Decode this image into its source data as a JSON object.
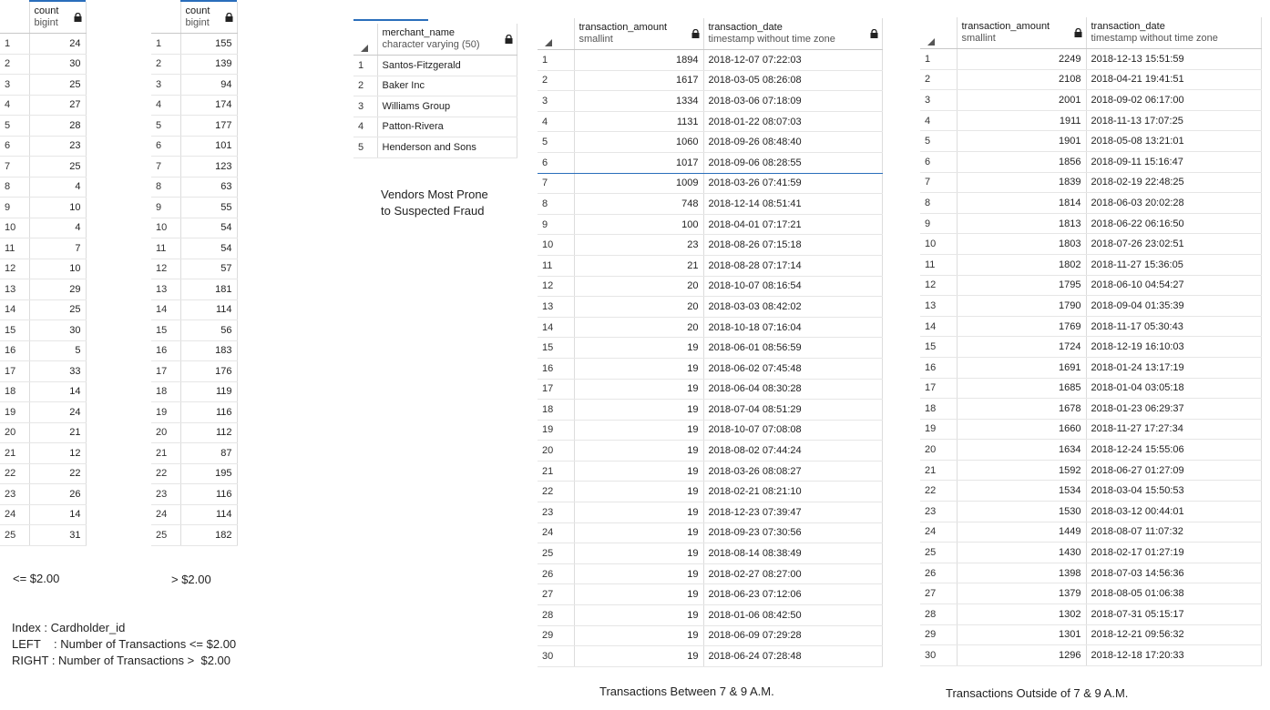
{
  "grid1": {
    "column": {
      "name": "count",
      "type": "bigint"
    },
    "rows": [
      [
        "1",
        "24"
      ],
      [
        "2",
        "30"
      ],
      [
        "3",
        "25"
      ],
      [
        "4",
        "27"
      ],
      [
        "5",
        "28"
      ],
      [
        "6",
        "23"
      ],
      [
        "7",
        "25"
      ],
      [
        "8",
        "4"
      ],
      [
        "9",
        "10"
      ],
      [
        "10",
        "4"
      ],
      [
        "11",
        "7"
      ],
      [
        "12",
        "10"
      ],
      [
        "13",
        "29"
      ],
      [
        "14",
        "25"
      ],
      [
        "15",
        "30"
      ],
      [
        "16",
        "5"
      ],
      [
        "17",
        "33"
      ],
      [
        "18",
        "14"
      ],
      [
        "19",
        "24"
      ],
      [
        "20",
        "21"
      ],
      [
        "21",
        "12"
      ],
      [
        "22",
        "22"
      ],
      [
        "23",
        "26"
      ],
      [
        "24",
        "14"
      ],
      [
        "25",
        "31"
      ]
    ]
  },
  "grid2": {
    "column": {
      "name": "count",
      "type": "bigint"
    },
    "rows": [
      [
        "1",
        "155"
      ],
      [
        "2",
        "139"
      ],
      [
        "3",
        "94"
      ],
      [
        "4",
        "174"
      ],
      [
        "5",
        "177"
      ],
      [
        "6",
        "101"
      ],
      [
        "7",
        "123"
      ],
      [
        "8",
        "63"
      ],
      [
        "9",
        "55"
      ],
      [
        "10",
        "54"
      ],
      [
        "11",
        "54"
      ],
      [
        "12",
        "57"
      ],
      [
        "13",
        "181"
      ],
      [
        "14",
        "114"
      ],
      [
        "15",
        "56"
      ],
      [
        "16",
        "183"
      ],
      [
        "17",
        "176"
      ],
      [
        "18",
        "119"
      ],
      [
        "19",
        "116"
      ],
      [
        "20",
        "112"
      ],
      [
        "21",
        "87"
      ],
      [
        "22",
        "195"
      ],
      [
        "23",
        "116"
      ],
      [
        "24",
        "114"
      ],
      [
        "25",
        "182"
      ]
    ]
  },
  "grid3": {
    "column": {
      "name": "merchant_name",
      "type": "character varying (50)"
    },
    "rows": [
      [
        "1",
        "Santos-Fitzgerald"
      ],
      [
        "2",
        "Baker Inc"
      ],
      [
        "3",
        "Williams Group"
      ],
      [
        "4",
        "Patton-Rivera"
      ],
      [
        "5",
        "Henderson and Sons"
      ]
    ]
  },
  "grid4": {
    "columns": [
      {
        "name": "transaction_amount",
        "type": "smallint"
      },
      {
        "name": "transaction_date",
        "type": "timestamp without time zone"
      }
    ],
    "rows": [
      [
        "1",
        "1894",
        "2018-12-07 07:22:03"
      ],
      [
        "2",
        "1617",
        "2018-03-05 08:26:08"
      ],
      [
        "3",
        "1334",
        "2018-03-06 07:18:09"
      ],
      [
        "4",
        "1131",
        "2018-01-22 08:07:03"
      ],
      [
        "5",
        "1060",
        "2018-09-26 08:48:40"
      ],
      [
        "6",
        "1017",
        "2018-09-06 08:28:55"
      ],
      [
        "7",
        "1009",
        "2018-03-26 07:41:59"
      ],
      [
        "8",
        "748",
        "2018-12-14 08:51:41"
      ],
      [
        "9",
        "100",
        "2018-04-01 07:17:21"
      ],
      [
        "10",
        "23",
        "2018-08-26 07:15:18"
      ],
      [
        "11",
        "21",
        "2018-08-28 07:17:14"
      ],
      [
        "12",
        "20",
        "2018-10-07 08:16:54"
      ],
      [
        "13",
        "20",
        "2018-03-03 08:42:02"
      ],
      [
        "14",
        "20",
        "2018-10-18 07:16:04"
      ],
      [
        "15",
        "19",
        "2018-06-01 08:56:59"
      ],
      [
        "16",
        "19",
        "2018-06-02 07:45:48"
      ],
      [
        "17",
        "19",
        "2018-06-04 08:30:28"
      ],
      [
        "18",
        "19",
        "2018-07-04 08:51:29"
      ],
      [
        "19",
        "19",
        "2018-10-07 07:08:08"
      ],
      [
        "20",
        "19",
        "2018-08-02 07:44:24"
      ],
      [
        "21",
        "19",
        "2018-03-26 08:08:27"
      ],
      [
        "22",
        "19",
        "2018-02-21 08:21:10"
      ],
      [
        "23",
        "19",
        "2018-12-23 07:39:47"
      ],
      [
        "24",
        "19",
        "2018-09-23 07:30:56"
      ],
      [
        "25",
        "19",
        "2018-08-14 08:38:49"
      ],
      [
        "26",
        "19",
        "2018-02-27 08:27:00"
      ],
      [
        "27",
        "19",
        "2018-06-23 07:12:06"
      ],
      [
        "28",
        "19",
        "2018-01-06 08:42:50"
      ],
      [
        "29",
        "19",
        "2018-06-09 07:29:28"
      ],
      [
        "30",
        "19",
        "2018-06-24 07:28:48"
      ]
    ]
  },
  "grid5": {
    "columns": [
      {
        "name": "transaction_amount",
        "type": "smallint"
      },
      {
        "name": "transaction_date",
        "type": "timestamp without time zone"
      }
    ],
    "rows": [
      [
        "1",
        "2249",
        "2018-12-13 15:51:59"
      ],
      [
        "2",
        "2108",
        "2018-04-21 19:41:51"
      ],
      [
        "3",
        "2001",
        "2018-09-02 06:17:00"
      ],
      [
        "4",
        "1911",
        "2018-11-13 17:07:25"
      ],
      [
        "5",
        "1901",
        "2018-05-08 13:21:01"
      ],
      [
        "6",
        "1856",
        "2018-09-11 15:16:47"
      ],
      [
        "7",
        "1839",
        "2018-02-19 22:48:25"
      ],
      [
        "8",
        "1814",
        "2018-06-03 20:02:28"
      ],
      [
        "9",
        "1813",
        "2018-06-22 06:16:50"
      ],
      [
        "10",
        "1803",
        "2018-07-26 23:02:51"
      ],
      [
        "11",
        "1802",
        "2018-11-27 15:36:05"
      ],
      [
        "12",
        "1795",
        "2018-06-10 04:54:27"
      ],
      [
        "13",
        "1790",
        "2018-09-04 01:35:39"
      ],
      [
        "14",
        "1769",
        "2018-11-17 05:30:43"
      ],
      [
        "15",
        "1724",
        "2018-12-19 16:10:03"
      ],
      [
        "16",
        "1691",
        "2018-01-24 13:17:19"
      ],
      [
        "17",
        "1685",
        "2018-01-04 03:05:18"
      ],
      [
        "18",
        "1678",
        "2018-01-23 06:29:37"
      ],
      [
        "19",
        "1660",
        "2018-11-27 17:27:34"
      ],
      [
        "20",
        "1634",
        "2018-12-24 15:55:06"
      ],
      [
        "21",
        "1592",
        "2018-06-27 01:27:09"
      ],
      [
        "22",
        "1534",
        "2018-03-04 15:50:53"
      ],
      [
        "23",
        "1530",
        "2018-03-12 00:44:01"
      ],
      [
        "24",
        "1449",
        "2018-08-07 11:07:32"
      ],
      [
        "25",
        "1430",
        "2018-02-17 01:27:19"
      ],
      [
        "26",
        "1398",
        "2018-07-03 14:56:36"
      ],
      [
        "27",
        "1379",
        "2018-08-05 01:06:38"
      ],
      [
        "28",
        "1302",
        "2018-07-31 05:15:17"
      ],
      [
        "29",
        "1301",
        "2018-12-21 09:56:32"
      ],
      [
        "30",
        "1296",
        "2018-12-18 17:20:33"
      ]
    ]
  },
  "captions": {
    "left": "<= $2.00",
    "right": "> $2.00",
    "legend_index": "Index : Cardholder_id",
    "legend_left": "LEFT    : Number of Transactions <= $2.00",
    "legend_right": "RIGHT : Number of Transactions >  $2.00",
    "vendors_line1": "Vendors Most Prone",
    "vendors_line2": "to Suspected Fraud",
    "between": "Transactions Between 7 & 9 A.M.",
    "outside": "Transactions Outside of 7 & 9 A.M."
  },
  "colors": {
    "accent": "#2a6ebb",
    "grid_line": "#dcdcdc"
  },
  "icons": [
    "lock-icon",
    "sort-corner-icon"
  ]
}
